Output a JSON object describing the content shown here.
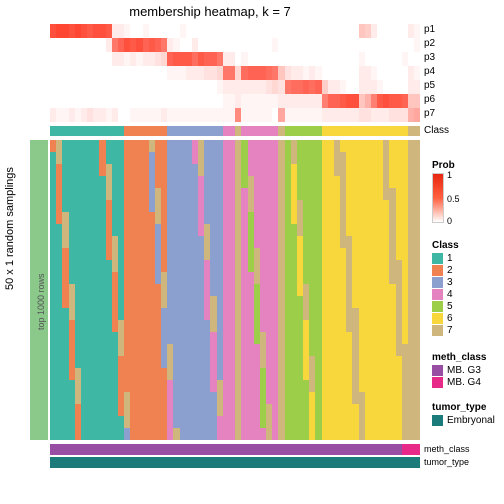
{
  "title": "membership heatmap, k = 7",
  "prob_labels": [
    "p1",
    "p2",
    "p3",
    "p4",
    "p5",
    "p6",
    "p7"
  ],
  "class_label": "Class",
  "left_label": "50 x 1 random samplings",
  "left_sub": "top 1000 rows",
  "bottom_labels": [
    "meth_class",
    "tumor_type"
  ],
  "colors": {
    "class": {
      "1": "#3eb8a5",
      "2": "#ef8250",
      "3": "#8ca0d0",
      "4": "#e583c0",
      "5": "#9cce4a",
      "6": "#f7d73b",
      "7": "#cfb67d"
    },
    "meth": {
      "MB. G3": "#984ea3",
      "MB. G4": "#e7298a"
    },
    "tumor": {
      "Embryonal": "#1b7a7a"
    }
  },
  "n_cols": 60,
  "class_assign": [
    1,
    1,
    1,
    1,
    1,
    1,
    1,
    1,
    1,
    1,
    1,
    1,
    2,
    2,
    2,
    2,
    2,
    2,
    2,
    3,
    3,
    3,
    3,
    3,
    3,
    3,
    3,
    3,
    4,
    4,
    7,
    4,
    4,
    4,
    4,
    4,
    4,
    7,
    5,
    5,
    5,
    5,
    5,
    5,
    6,
    6,
    6,
    6,
    6,
    6,
    6,
    6,
    6,
    6,
    6,
    6,
    6,
    6,
    7,
    7
  ],
  "prob_matrix": [
    [
      0.9,
      0.95,
      0.95,
      0.9,
      0.95,
      0.9,
      0.85,
      0.9,
      0.9,
      0.85,
      0.1,
      0.1,
      0.05,
      0,
      0,
      0.05,
      0,
      0,
      0,
      0,
      0,
      0.05,
      0,
      0,
      0,
      0,
      0,
      0,
      0,
      0,
      0,
      0,
      0,
      0,
      0,
      0,
      0,
      0,
      0,
      0,
      0,
      0,
      0,
      0,
      0,
      0,
      0,
      0,
      0,
      0,
      0.3,
      0.25,
      0.1,
      0,
      0,
      0,
      0,
      0,
      0.1,
      0.05
    ],
    [
      0,
      0,
      0,
      0,
      0,
      0,
      0,
      0,
      0,
      0.1,
      0.7,
      0.8,
      0.9,
      0.85,
      0.9,
      0.8,
      0.85,
      0.8,
      0.7,
      0.1,
      0.05,
      0,
      0,
      0.1,
      0,
      0,
      0,
      0,
      0,
      0,
      0,
      0,
      0,
      0,
      0,
      0,
      0.05,
      0,
      0,
      0,
      0,
      0,
      0,
      0,
      0,
      0,
      0,
      0,
      0,
      0,
      0,
      0,
      0,
      0,
      0,
      0,
      0,
      0,
      0,
      0.05
    ],
    [
      0,
      0,
      0,
      0,
      0,
      0,
      0,
      0,
      0,
      0,
      0.1,
      0.1,
      0.05,
      0.1,
      0.05,
      0.1,
      0.1,
      0.15,
      0.2,
      0.8,
      0.85,
      0.85,
      0.85,
      0.75,
      0.85,
      0.8,
      0.8,
      0.7,
      0.1,
      0.1,
      0,
      0.05,
      0,
      0,
      0,
      0,
      0,
      0,
      0,
      0,
      0,
      0,
      0,
      0,
      0,
      0,
      0,
      0,
      0,
      0,
      0.05,
      0,
      0,
      0,
      0,
      0,
      0,
      0.05,
      0,
      0
    ],
    [
      0,
      0,
      0,
      0,
      0,
      0,
      0,
      0,
      0,
      0,
      0,
      0,
      0,
      0,
      0,
      0,
      0,
      0,
      0,
      0.05,
      0.05,
      0.05,
      0.1,
      0.1,
      0.1,
      0.15,
      0.15,
      0.2,
      0.7,
      0.7,
      0.2,
      0.75,
      0.8,
      0.8,
      0.8,
      0.75,
      0.7,
      0.3,
      0.15,
      0.1,
      0.1,
      0.05,
      0.1,
      0.05,
      0,
      0,
      0,
      0,
      0,
      0,
      0.1,
      0.1,
      0.05,
      0,
      0,
      0,
      0,
      0,
      0.1,
      0.05
    ],
    [
      0,
      0,
      0,
      0,
      0,
      0,
      0,
      0,
      0,
      0,
      0,
      0,
      0,
      0,
      0,
      0,
      0,
      0,
      0,
      0,
      0,
      0,
      0,
      0,
      0,
      0,
      0,
      0.05,
      0.1,
      0.1,
      0.1,
      0.1,
      0.1,
      0.1,
      0.1,
      0.15,
      0.2,
      0.15,
      0.7,
      0.75,
      0.75,
      0.8,
      0.75,
      0.8,
      0.25,
      0.1,
      0.1,
      0.05,
      0,
      0,
      0.1,
      0.1,
      0.1,
      0.05,
      0,
      0,
      0,
      0,
      0.1,
      0.1
    ],
    [
      0,
      0,
      0,
      0,
      0,
      0,
      0,
      0,
      0,
      0,
      0,
      0,
      0,
      0,
      0,
      0,
      0,
      0,
      0,
      0,
      0,
      0,
      0,
      0,
      0,
      0,
      0,
      0,
      0.05,
      0.05,
      0.1,
      0.05,
      0.05,
      0.05,
      0.05,
      0.05,
      0.05,
      0.1,
      0.1,
      0.1,
      0.1,
      0.1,
      0.1,
      0.1,
      0.65,
      0.8,
      0.8,
      0.85,
      0.9,
      0.9,
      0.3,
      0.4,
      0.65,
      0.85,
      0.9,
      0.85,
      0.85,
      0.8,
      0.3,
      0.3
    ],
    [
      0.1,
      0.05,
      0.05,
      0.1,
      0.05,
      0.1,
      0.15,
      0.1,
      0.1,
      0.05,
      0.1,
      0,
      0,
      0.05,
      0.05,
      0.05,
      0.05,
      0.05,
      0.1,
      0.05,
      0.05,
      0.05,
      0.05,
      0.05,
      0.05,
      0.05,
      0.05,
      0.05,
      0.05,
      0.05,
      0.6,
      0.05,
      0.05,
      0.05,
      0.05,
      0.05,
      0,
      0.45,
      0.05,
      0.05,
      0.05,
      0.05,
      0.05,
      0.05,
      0.1,
      0.1,
      0.1,
      0.1,
      0.1,
      0.1,
      0.15,
      0.15,
      0.1,
      0.1,
      0.1,
      0.15,
      0.15,
      0.15,
      0.4,
      0.45
    ]
  ],
  "meth_assign": [
    0,
    0,
    0,
    0,
    0,
    0,
    0,
    0,
    0,
    0,
    0,
    0,
    0,
    0,
    0,
    0,
    0,
    0,
    0,
    0,
    0,
    0,
    0,
    0,
    0,
    0,
    0,
    0,
    0,
    0,
    0,
    0,
    0,
    0,
    0,
    0,
    0,
    0,
    0,
    0,
    0,
    0,
    0,
    0,
    0,
    0,
    0,
    0,
    0,
    0,
    0,
    0,
    0,
    0,
    0,
    0,
    0,
    1,
    1,
    1
  ],
  "legends": {
    "prob": {
      "title": "Prob",
      "ticks": [
        "0",
        "0.5",
        "1"
      ]
    },
    "class": {
      "title": "Class",
      "items": [
        "1",
        "2",
        "3",
        "4",
        "5",
        "6",
        "7"
      ]
    },
    "meth": {
      "title": "meth_class",
      "items": [
        "MB. G3",
        "MB. G4"
      ]
    },
    "tumor": {
      "title": "tumor_type",
      "items": [
        "Embryonal"
      ]
    }
  },
  "main_n_rows": 25
}
